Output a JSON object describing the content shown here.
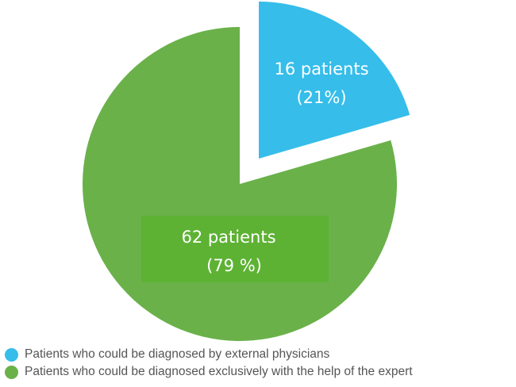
{
  "chart_data": {
    "type": "pie",
    "exploded": "first slice",
    "slices": [
      {
        "name": "Patients who could be diagnosed by external physicians",
        "value": 16,
        "percent_label": "(21%)",
        "count_label": "16 patients",
        "color": "#36bdea"
      },
      {
        "name": "Patients who could be diagnosed exclusively with the help of the expert",
        "value": 62,
        "percent_label": "(79 %)",
        "count_label": "62 patients",
        "color": "#6ab14a"
      }
    ],
    "label_box_color": "#5db233",
    "legend_position": "bottom-left",
    "title": ""
  }
}
